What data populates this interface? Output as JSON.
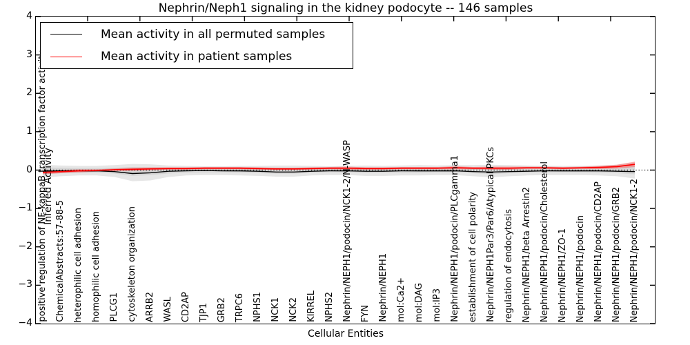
{
  "chart_data": {
    "type": "line",
    "title": "Nephrin/Neph1 signaling in the kidney podocyte -- 146 samples",
    "xlabel": "Cellular Entities",
    "ylabel": "Inferred Activity",
    "ylim": [
      -4,
      4
    ],
    "ytick_values": [
      4,
      3,
      2,
      1,
      0,
      -1,
      -2,
      -3,
      -4
    ],
    "ytick_labels": [
      "4",
      "3",
      "2",
      "1",
      "0",
      "−1",
      "−2",
      "−3",
      "−4"
    ],
    "grid": false,
    "legend_position": "upper left",
    "zero_line": {
      "style": "dotted",
      "color": "#000000",
      "y": 0
    },
    "categories": [
      "positive regulation of NF-kappaB transcription factor activity",
      "ChemicalAbstracts:57-88-5",
      "heterophilic cell adhesion",
      "homophilic cell adhesion",
      "PLCG1",
      "cytoskeleton organization",
      "ARRB2",
      "WASL",
      "CD2AP",
      "TJP1",
      "GRB2",
      "TRPC6",
      "NPHS1",
      "NCK1",
      "NCK2",
      "KIRREL",
      "NPHS2",
      "Nephrin/NEPH1/podocin/NCK1-2/N-WASP",
      "FYN",
      "Nephrin/NEPH1",
      "mol:Ca2+",
      "mol:DAG",
      "mol:IP3",
      "Nephrin/NEPH1/podocin/PLCgamma1",
      "establishment of cell polarity",
      "Nephrin/NEPH1Par3/Par6/Atypical PKCs",
      "regulation of endocytosis",
      "Nephrin/NEPH1/beta Arrestin2",
      "Nephrin/NEPH1/podocin/Cholesterol",
      "Nephrin/NEPH1/ZO-1",
      "Nephrin/NEPH1/podocin",
      "Nephrin/NEPH1/podocin/CD2AP",
      "Nephrin/NEPH1/podocin/GRB2",
      "Nephrin/NEPH1/podocin/NCK1-2"
    ],
    "series": [
      {
        "name": "Mean activity in all permuted samples",
        "color": "#000000",
        "values": [
          -0.03,
          -0.02,
          -0.02,
          -0.02,
          -0.04,
          -0.09,
          -0.07,
          -0.03,
          -0.02,
          -0.01,
          -0.02,
          -0.02,
          -0.03,
          -0.05,
          -0.05,
          -0.03,
          -0.02,
          -0.02,
          -0.03,
          -0.03,
          -0.02,
          -0.02,
          -0.02,
          -0.02,
          -0.04,
          -0.05,
          -0.04,
          -0.03,
          -0.02,
          -0.02,
          -0.02,
          -0.02,
          -0.03,
          -0.04
        ]
      },
      {
        "name": "Mean activity in patient samples",
        "color": "#ff0000",
        "values": [
          -0.06,
          -0.04,
          -0.02,
          -0.01,
          0.01,
          0.02,
          0.03,
          0.04,
          0.04,
          0.05,
          0.05,
          0.05,
          0.04,
          0.03,
          0.03,
          0.04,
          0.05,
          0.05,
          0.04,
          0.04,
          0.05,
          0.05,
          0.05,
          0.06,
          0.05,
          0.05,
          0.05,
          0.06,
          0.06,
          0.05,
          0.06,
          0.07,
          0.09,
          0.15
        ]
      }
    ],
    "bands": [
      {
        "name": "permuted-spread-outer",
        "color": "#808080",
        "opacity": 0.2,
        "upper": [
          0.14,
          0.12,
          0.11,
          0.11,
          0.13,
          0.16,
          0.15,
          0.12,
          0.11,
          0.1,
          0.1,
          0.11,
          0.11,
          0.12,
          0.12,
          0.11,
          0.1,
          0.11,
          0.12,
          0.11,
          0.12,
          0.13,
          0.12,
          0.13,
          0.13,
          0.14,
          0.13,
          0.12,
          0.11,
          0.11,
          0.11,
          0.12,
          0.14,
          0.2
        ],
        "lower": [
          -0.2,
          -0.16,
          -0.14,
          -0.14,
          -0.18,
          -0.29,
          -0.27,
          -0.18,
          -0.14,
          -0.13,
          -0.13,
          -0.14,
          -0.15,
          -0.17,
          -0.17,
          -0.14,
          -0.13,
          -0.13,
          -0.15,
          -0.15,
          -0.14,
          -0.14,
          -0.13,
          -0.13,
          -0.16,
          -0.19,
          -0.16,
          -0.14,
          -0.13,
          -0.13,
          -0.13,
          -0.14,
          -0.16,
          -0.22
        ]
      },
      {
        "name": "permuted-spread-inner",
        "color": "#808080",
        "opacity": 0.15,
        "upper": [
          0.07,
          0.06,
          0.05,
          0.05,
          0.06,
          0.08,
          0.07,
          0.06,
          0.05,
          0.05,
          0.05,
          0.05,
          0.05,
          0.06,
          0.06,
          0.05,
          0.05,
          0.05,
          0.06,
          0.05,
          0.06,
          0.06,
          0.06,
          0.06,
          0.06,
          0.07,
          0.06,
          0.06,
          0.05,
          0.05,
          0.05,
          0.06,
          0.07,
          0.1
        ],
        "lower": [
          -0.1,
          -0.08,
          -0.07,
          -0.07,
          -0.09,
          -0.15,
          -0.13,
          -0.09,
          -0.07,
          -0.06,
          -0.06,
          -0.07,
          -0.08,
          -0.09,
          -0.09,
          -0.07,
          -0.06,
          -0.06,
          -0.08,
          -0.07,
          -0.07,
          -0.07,
          -0.06,
          -0.06,
          -0.08,
          -0.1,
          -0.08,
          -0.07,
          -0.06,
          -0.06,
          -0.06,
          -0.07,
          -0.08,
          -0.11
        ]
      },
      {
        "name": "patient-spread",
        "color": "#ff0000",
        "opacity": 0.3,
        "upper": [
          -0.01,
          0.0,
          0.02,
          0.02,
          0.04,
          0.06,
          0.07,
          0.07,
          0.07,
          0.08,
          0.08,
          0.08,
          0.07,
          0.06,
          0.06,
          0.07,
          0.08,
          0.09,
          0.07,
          0.07,
          0.08,
          0.08,
          0.08,
          0.1,
          0.08,
          0.09,
          0.09,
          0.09,
          0.09,
          0.08,
          0.09,
          0.11,
          0.14,
          0.22
        ],
        "lower": [
          -0.11,
          -0.08,
          -0.06,
          -0.04,
          -0.02,
          -0.02,
          -0.01,
          0.01,
          0.01,
          0.02,
          0.02,
          0.02,
          0.01,
          0.0,
          0.0,
          0.01,
          0.02,
          0.01,
          0.01,
          0.01,
          0.02,
          0.02,
          0.02,
          0.02,
          0.02,
          0.01,
          0.01,
          0.03,
          0.03,
          0.02,
          0.03,
          0.03,
          0.04,
          0.08
        ]
      }
    ]
  }
}
